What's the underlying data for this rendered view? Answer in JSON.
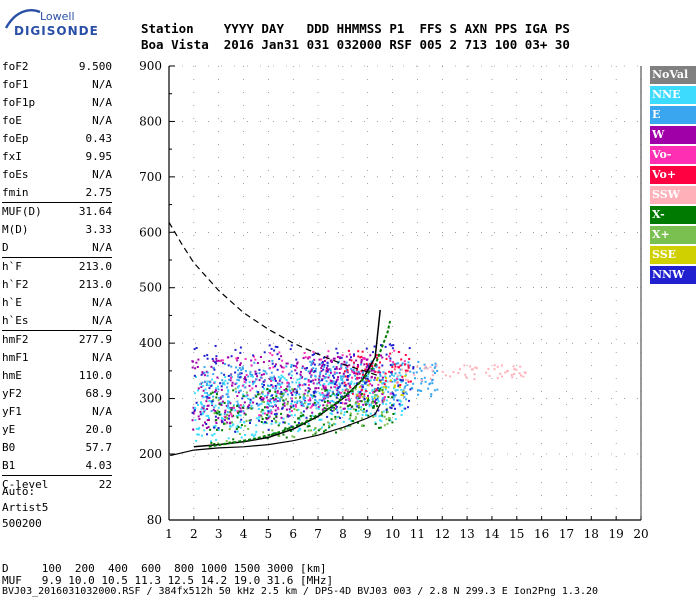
{
  "logo": {
    "brand": "Lowell",
    "name": "DIGISONDE"
  },
  "header": {
    "line1": "Station    YYYY DAY   DDD HHMMSS P1  FFS S AXN PPS IGA PS",
    "line2": "Boa Vista  2016 Jan31 031 032000 RSF 005 2 713 100 03+ 30"
  },
  "params": [
    {
      "k": "foF2",
      "v": "9.500"
    },
    {
      "k": "foF1",
      "v": "N/A"
    },
    {
      "k": "foF1p",
      "v": "N/A"
    },
    {
      "k": "foE",
      "v": "N/A"
    },
    {
      "k": "foEp",
      "v": "0.43"
    },
    {
      "k": "fxI",
      "v": "9.95"
    },
    {
      "k": "foEs",
      "v": "N/A"
    },
    {
      "k": "fmin",
      "v": "2.75",
      "sepAfter": true
    },
    {
      "k": "MUF(D)",
      "v": "31.64"
    },
    {
      "k": "M(D)",
      "v": "3.33"
    },
    {
      "k": "D",
      "v": "N/A",
      "sepAfter": true
    },
    {
      "k": "h`F",
      "v": "213.0"
    },
    {
      "k": "h`F2",
      "v": "213.0"
    },
    {
      "k": "h`E",
      "v": "N/A"
    },
    {
      "k": "h`Es",
      "v": "N/A",
      "sepAfter": true
    },
    {
      "k": "hmF2",
      "v": "277.9"
    },
    {
      "k": "hmF1",
      "v": "N/A"
    },
    {
      "k": "hmE",
      "v": "110.0"
    },
    {
      "k": "yF2",
      "v": "68.9"
    },
    {
      "k": "yF1",
      "v": "N/A"
    },
    {
      "k": "yE",
      "v": "20.0"
    },
    {
      "k": "B0",
      "v": "57.7"
    },
    {
      "k": "B1",
      "v": "4.03",
      "sepAfter": true
    },
    {
      "k": "C-level",
      "v": "22",
      "sepAfter": true
    }
  ],
  "auto": {
    "line1": "Auto:",
    "line2": "Artist5",
    "line3": "500200"
  },
  "footer": {
    "d_line": "D     100  200  400  600  800 1000 1500 3000 [km]",
    "muf_line": "MUF   9.9 10.0 10.5 11.3 12.5 14.2 19.0 31.6 [MHz]",
    "info_line": "BVJ03_2016031032000.RSF / 384fx512h 50 kHz 2.5 km / DPS-4D BVJ03 003 / 2.8 N 299.3 E Ion2Png 1.3.20"
  },
  "legend": [
    {
      "label": "NoVal",
      "color": "#808080"
    },
    {
      "label": "NNE",
      "color": "#3ddcff"
    },
    {
      "label": "E",
      "color": "#3aa6f0"
    },
    {
      "label": "W",
      "color": "#a000a8"
    },
    {
      "label": "Vo-",
      "color": "#ff2fb4"
    },
    {
      "label": "Vo+",
      "color": "#ff0040"
    },
    {
      "label": "SSW",
      "color": "#ffb0b8"
    },
    {
      "label": "X-",
      "color": "#007a00"
    },
    {
      "label": "X+",
      "color": "#7ac050"
    },
    {
      "label": "SSE",
      "color": "#d0d000"
    },
    {
      "label": "NNW",
      "color": "#2020d0"
    }
  ],
  "chart_data": {
    "type": "scatter",
    "title": "",
    "xlabel": "",
    "ylabel": "",
    "xlim": [
      1,
      20
    ],
    "ylim": [
      80,
      900
    ],
    "x_ticks": [
      1,
      2,
      3,
      4,
      5,
      6,
      7,
      8,
      9,
      10,
      11,
      12,
      13,
      14,
      15,
      16,
      17,
      18,
      19,
      20
    ],
    "y_ticks": [
      80,
      200,
      300,
      400,
      500,
      600,
      700,
      800,
      900
    ],
    "x_tick_labels": [
      "1",
      "2",
      "3",
      "4",
      "5",
      "6",
      "7",
      "8",
      "9",
      "10",
      "11",
      "12",
      "13",
      "14",
      "15",
      "16",
      "17",
      "18",
      "19",
      "20"
    ],
    "y_tick_labels": [
      "80",
      "200",
      "300",
      "400",
      "500",
      "600",
      "700",
      "800",
      "900"
    ],
    "clusters": [
      {
        "name": "W",
        "color": "#a000a8",
        "x": [
          1.9,
          9.6
        ],
        "y": [
          245,
          380
        ],
        "n": 420
      },
      {
        "name": "NNE",
        "color": "#3ddcff",
        "x": [
          2.0,
          10.5
        ],
        "y": [
          220,
          345
        ],
        "n": 380
      },
      {
        "name": "E",
        "color": "#3aa6f0",
        "x": [
          2.3,
          11.8
        ],
        "y": [
          270,
          370
        ],
        "n": 360
      },
      {
        "name": "X-",
        "color": "#007a00",
        "x": [
          2.6,
          10.0
        ],
        "y": [
          215,
          320
        ],
        "n": 170
      },
      {
        "name": "X+",
        "color": "#7ac050",
        "x": [
          2.6,
          10.0
        ],
        "y": [
          215,
          320
        ],
        "n": 110
      },
      {
        "name": "Vo-",
        "color": "#ff2fb4",
        "x": [
          3.0,
          10.5
        ],
        "y": [
          260,
          390
        ],
        "n": 110
      },
      {
        "name": "Vo+",
        "color": "#ff0040",
        "x": [
          8.0,
          10.8
        ],
        "y": [
          300,
          390
        ],
        "n": 70
      },
      {
        "name": "SSW",
        "color": "#ffb0b8",
        "x": [
          10.0,
          15.4
        ],
        "y": [
          330,
          362
        ],
        "n": 60
      },
      {
        "name": "NNW",
        "color": "#2020d0",
        "x": [
          1.9,
          10.8
        ],
        "y": [
          220,
          400
        ],
        "n": 200
      },
      {
        "name": "SSE",
        "color": "#d0d000",
        "x": [
          8.5,
          10.5
        ],
        "y": [
          290,
          345
        ],
        "n": 25
      }
    ],
    "traces": {
      "o_trace": [
        [
          2.0,
          213
        ],
        [
          3,
          217
        ],
        [
          4,
          222
        ],
        [
          5,
          230
        ],
        [
          6,
          245
        ],
        [
          7,
          268
        ],
        [
          8,
          300
        ],
        [
          8.8,
          335
        ],
        [
          9.3,
          375
        ],
        [
          9.5,
          460
        ]
      ],
      "x_trace": [
        [
          2.6,
          213
        ],
        [
          3.5,
          220
        ],
        [
          4.5,
          228
        ],
        [
          5.5,
          240
        ],
        [
          6.5,
          258
        ],
        [
          7.5,
          284
        ],
        [
          8.5,
          320
        ],
        [
          9.3,
          360
        ],
        [
          9.8,
          420
        ],
        [
          9.9,
          440
        ]
      ],
      "profile": [
        [
          1.05,
          197
        ],
        [
          2,
          207
        ],
        [
          3,
          211
        ],
        [
          4,
          213
        ],
        [
          5,
          217
        ],
        [
          6,
          224
        ],
        [
          7,
          234
        ],
        [
          8,
          248
        ],
        [
          9,
          265
        ],
        [
          9.3,
          272
        ],
        [
          9.5,
          290
        ]
      ],
      "muf_dashed": [
        [
          1.0,
          618
        ],
        [
          1.5,
          580
        ],
        [
          2,
          545
        ],
        [
          3,
          495
        ],
        [
          4,
          455
        ],
        [
          5,
          425
        ],
        [
          6,
          400
        ],
        [
          7,
          380
        ],
        [
          8,
          362
        ],
        [
          9,
          348
        ],
        [
          9.5,
          340
        ]
      ]
    }
  }
}
